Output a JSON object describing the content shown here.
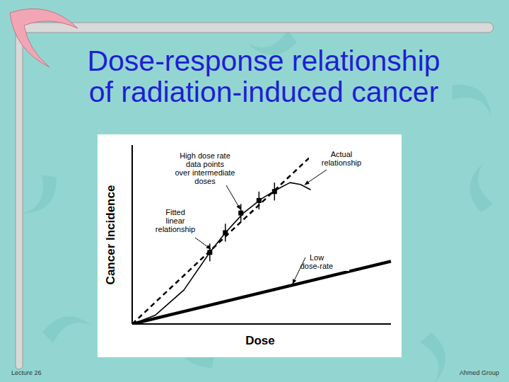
{
  "slide": {
    "title": [
      "Dose-response relationship",
      "of radiation-induced cancer"
    ],
    "footer_left": "Lecture 26",
    "footer_right": "Ahmed Group"
  },
  "chart_data": {
    "type": "line",
    "x_label": "Dose",
    "y_label": "Cancer Incidence",
    "xlim": [
      0,
      100
    ],
    "ylim": [
      0,
      100
    ],
    "tick_labels": false,
    "grid": false,
    "series": [
      {
        "name": "High dose rate data points over intermediate doses",
        "type": "scatter",
        "marker": "square",
        "color": "#000000",
        "x": [
          30,
          36,
          42,
          49,
          55
        ],
        "values": [
          40,
          51,
          62,
          69,
          74
        ],
        "errors": [
          5,
          5,
          5,
          5,
          5
        ]
      },
      {
        "name": "Actual relationship",
        "type": "line",
        "line_style": "solid",
        "color": "#000000",
        "x": [
          0,
          9,
          20,
          30,
          36,
          43,
          50,
          57,
          61,
          65,
          69
        ],
        "values": [
          0,
          5,
          19,
          40,
          51,
          62,
          70,
          76,
          79,
          78,
          75
        ]
      },
      {
        "name": "Fitted linear relationship",
        "type": "line",
        "line_style": "dashed",
        "color": "#000000",
        "x": [
          0,
          70
        ],
        "values": [
          0,
          95
        ]
      },
      {
        "name": "Low dose-rate",
        "type": "line",
        "line_style": "solid",
        "color": "#000000",
        "x": [
          0,
          100
        ],
        "values": [
          0,
          35
        ]
      }
    ]
  }
}
